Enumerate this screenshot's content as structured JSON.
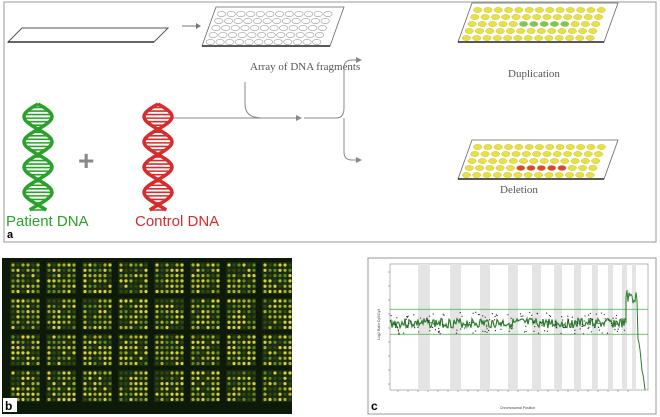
{
  "panel_a": {
    "label": "a",
    "array_label": "Array of DNA fragments",
    "duplication_label": "Duplication",
    "deletion_label": "Deletion",
    "patient_label": "Patient DNA",
    "control_label": "Control DNA",
    "plus": "+",
    "colors": {
      "patient": "#2aa22a",
      "control": "#d62c2c",
      "spot_yellow": "#e6e04a",
      "spot_green": "#7cc46a",
      "spot_red": "#d8473a"
    }
  },
  "panel_b": {
    "label": "b",
    "grid": {
      "rows": 4,
      "cols": 8
    }
  },
  "panel_c": {
    "label": "c",
    "ylabel": "Log2 Ratio Cy5/Cy3",
    "xlabel": "Chromosomal Position"
  }
}
